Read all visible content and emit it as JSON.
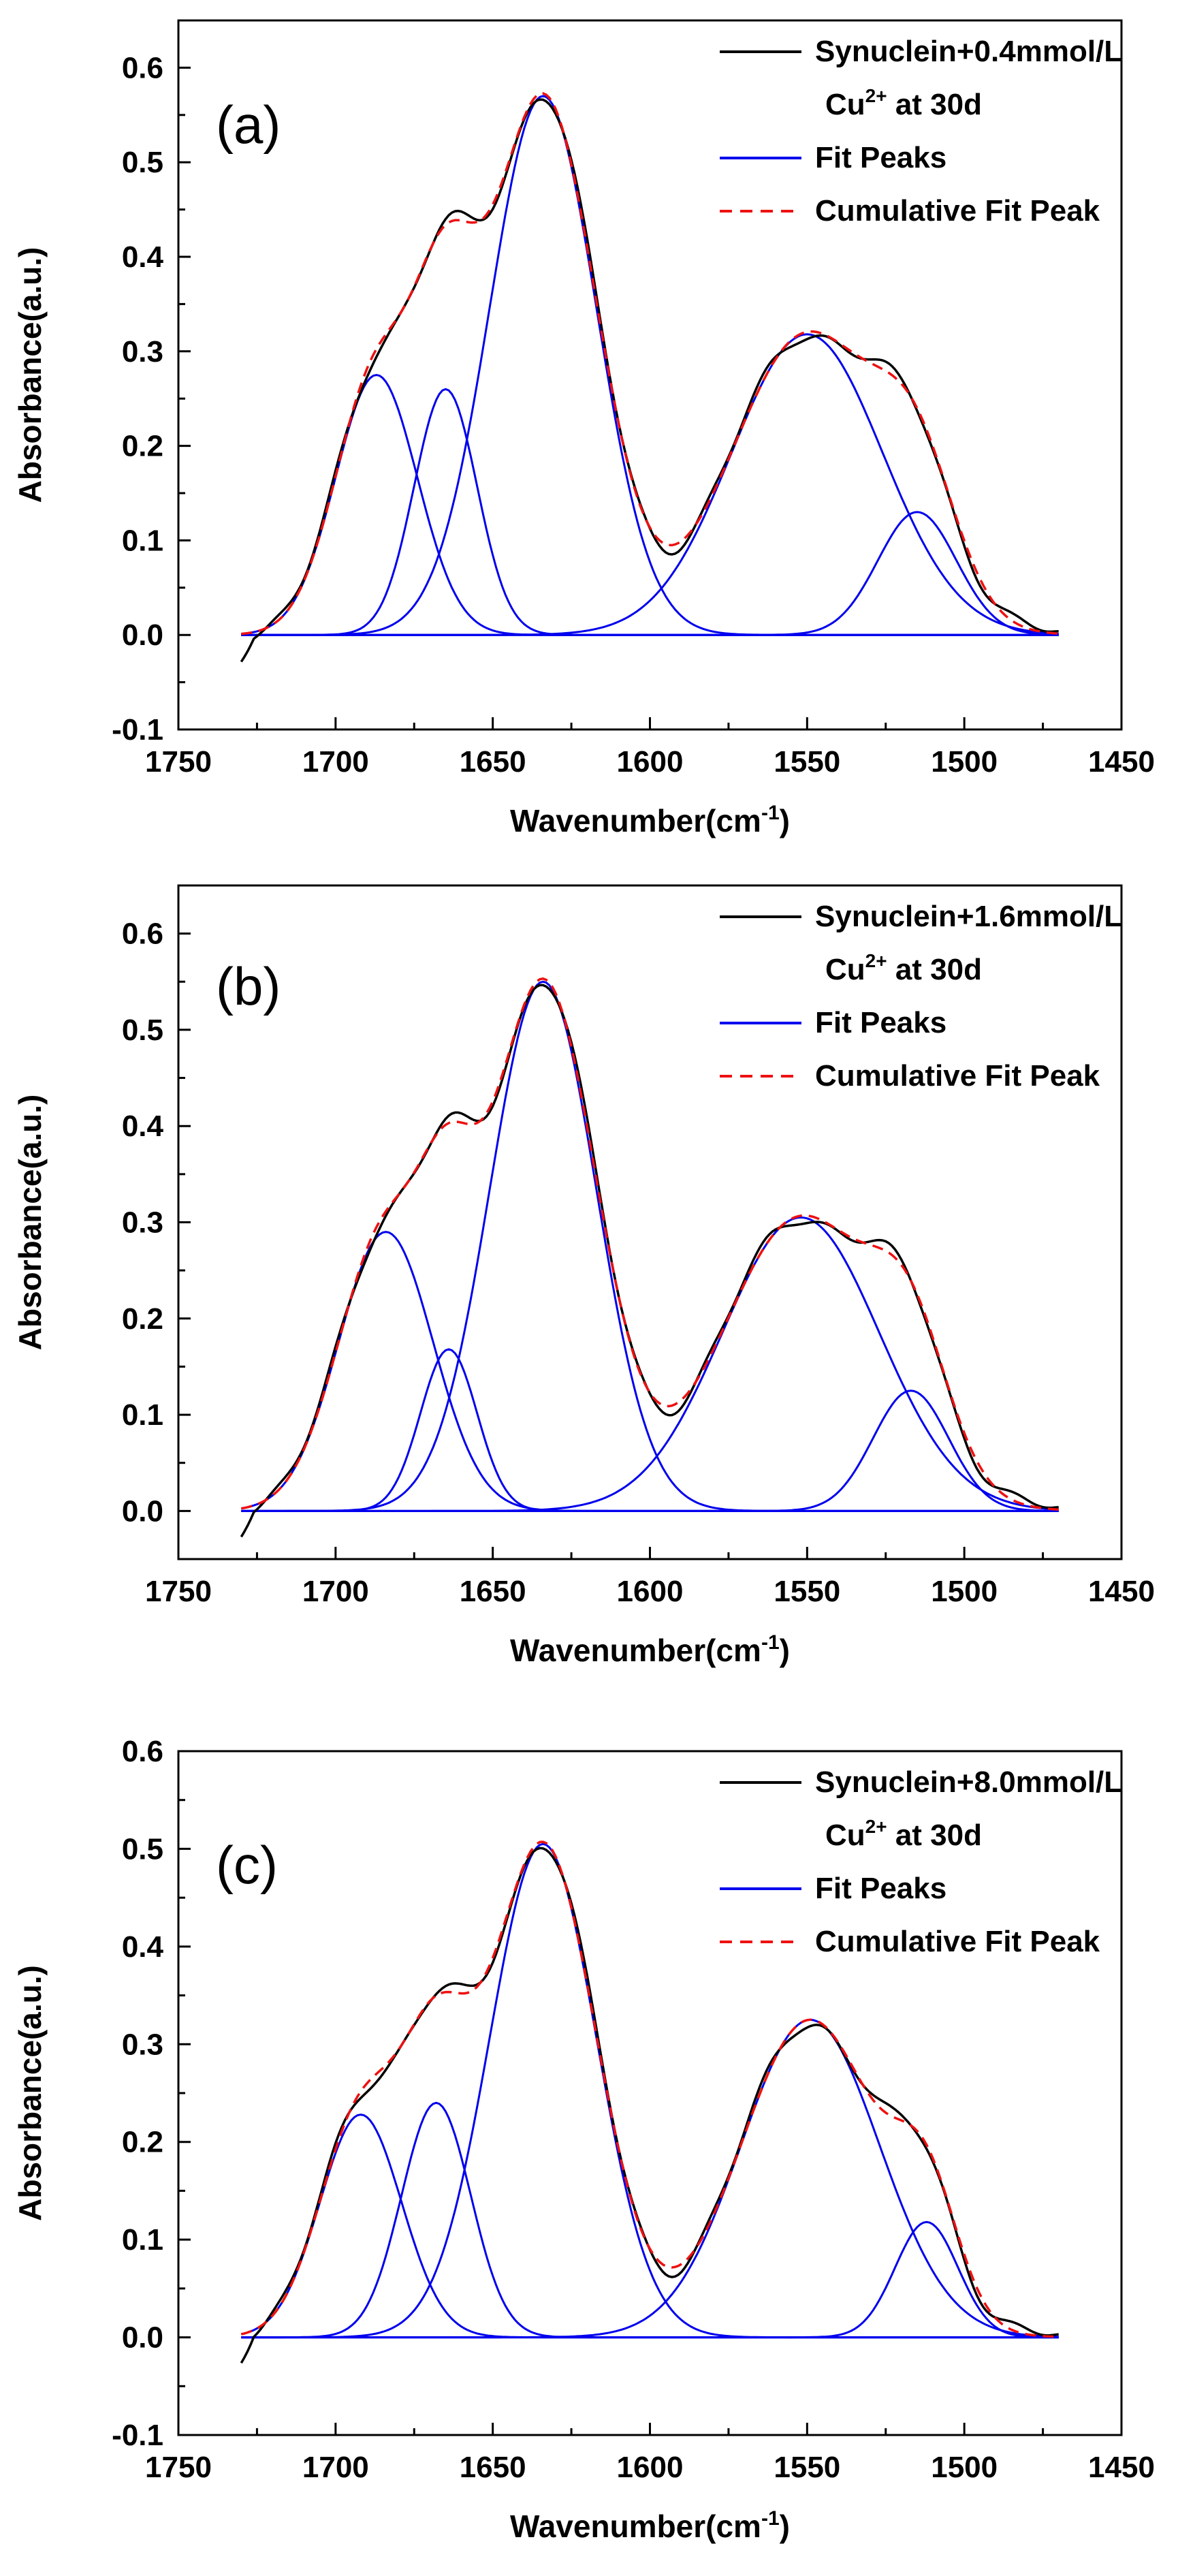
{
  "chart_data": [
    {
      "type": "line",
      "panel_label": "(a)",
      "xlabel_main": "Wavenumber(cm",
      "xlabel_sup": "-1",
      "xlabel_tail": ")",
      "ylabel": "Absorbance(a.u.)",
      "xlim": [
        1750,
        1450
      ],
      "ylim": [
        -0.1,
        0.65
      ],
      "x_ticks": [
        1750,
        1700,
        1650,
        1600,
        1550,
        1500,
        1450
      ],
      "x_tick_labels": [
        "1750",
        "1700",
        "1650",
        "1600",
        "1550",
        "1500",
        "1450"
      ],
      "y_ticks": [
        -0.1,
        0.0,
        0.1,
        0.2,
        0.3,
        0.4,
        0.5,
        0.6
      ],
      "y_tick_labels": [
        "-0.1",
        "0.0",
        "0.1",
        "0.2",
        "0.3",
        "0.4",
        "0.5",
        "0.6"
      ],
      "legend": {
        "placement": "top-right",
        "entries": [
          {
            "label": "Synuclein+0.4mmol/L",
            "color": "#000000",
            "dash": false
          },
          {
            "label_main": "Cu",
            "label_sup": "2+",
            "label_tail": " at 30d"
          },
          {
            "label": "Fit Peaks",
            "color": "#0000ee",
            "dash": false
          },
          {
            "label": "Cumulative Fit Peak",
            "color": "#ee1111",
            "dash": true
          }
        ]
      },
      "x_range": [
        1730,
        1470
      ],
      "peaks": [
        {
          "center": 1687,
          "amplitude": 0.275,
          "sigma": 13.0
        },
        {
          "center": 1665,
          "amplitude": 0.26,
          "sigma": 10.0
        },
        {
          "center": 1634,
          "amplitude": 0.57,
          "sigma": 17.0
        },
        {
          "center": 1550,
          "amplitude": 0.318,
          "sigma": 24.0
        },
        {
          "center": 1515,
          "amplitude": 0.13,
          "sigma": 12.5
        }
      ],
      "baseline": 0.0,
      "colors": {
        "spectrum": "#000000",
        "fit": "#0000ee",
        "cumulative": "#ee1111"
      }
    },
    {
      "type": "line",
      "panel_label": "(b)",
      "xlabel_main": "Wavenumber(cm",
      "xlabel_sup": "-1",
      "xlabel_tail": ")",
      "ylabel": "Absorbance(a.u.)",
      "xlim": [
        1750,
        1450
      ],
      "ylim": [
        -0.05,
        0.65
      ],
      "x_ticks": [
        1750,
        1700,
        1650,
        1600,
        1550,
        1500,
        1450
      ],
      "x_tick_labels": [
        "1750",
        "1700",
        "1650",
        "1600",
        "1550",
        "1500",
        "1450"
      ],
      "y_ticks": [
        0.0,
        0.1,
        0.2,
        0.3,
        0.4,
        0.5,
        0.6
      ],
      "y_tick_labels": [
        "0.0",
        "0.1",
        "0.2",
        "0.3",
        "0.4",
        "0.5",
        "0.6"
      ],
      "legend": {
        "placement": "top-right",
        "entries": [
          {
            "label": "Synuclein+1.6mmol/L",
            "color": "#000000",
            "dash": false
          },
          {
            "label_main": "Cu",
            "label_sup": "2+",
            "label_tail": " at 30d"
          },
          {
            "label": "Fit Peaks",
            "color": "#0000ee",
            "dash": false
          },
          {
            "label": "Cumulative Fit Peak",
            "color": "#ee1111",
            "dash": true
          }
        ]
      },
      "x_range": [
        1730,
        1470
      ],
      "peaks": [
        {
          "center": 1684,
          "amplitude": 0.29,
          "sigma": 15.0
        },
        {
          "center": 1664,
          "amplitude": 0.168,
          "sigma": 9.0
        },
        {
          "center": 1634,
          "amplitude": 0.55,
          "sigma": 17.0
        },
        {
          "center": 1552,
          "amplitude": 0.305,
          "sigma": 25.0
        },
        {
          "center": 1517,
          "amplitude": 0.125,
          "sigma": 12.0
        }
      ],
      "baseline": 0.0,
      "colors": {
        "spectrum": "#000000",
        "fit": "#0000ee",
        "cumulative": "#ee1111"
      }
    },
    {
      "type": "line",
      "panel_label": "(c)",
      "xlabel_main": "Wavenumber(cm",
      "xlabel_sup": "-1",
      "xlabel_tail": ")",
      "ylabel": "Absorbance(a.u.)",
      "xlim": [
        1750,
        1450
      ],
      "ylim": [
        -0.1,
        0.6
      ],
      "x_ticks": [
        1750,
        1700,
        1650,
        1600,
        1550,
        1500,
        1450
      ],
      "x_tick_labels": [
        "1750",
        "1700",
        "1650",
        "1600",
        "1550",
        "1500",
        "1450"
      ],
      "y_ticks": [
        -0.1,
        0.0,
        0.1,
        0.2,
        0.3,
        0.4,
        0.5,
        0.6
      ],
      "y_tick_labels": [
        "-0.1",
        "0.0",
        "0.1",
        "0.2",
        "0.3",
        "0.4",
        "0.5",
        "0.6"
      ],
      "legend": {
        "placement": "top-right",
        "entries": [
          {
            "label": "Synuclein+8.0mmol/L",
            "color": "#000000",
            "dash": false
          },
          {
            "label_main": "Cu",
            "label_sup": "2+",
            "label_tail": " at 30d"
          },
          {
            "label": "Fit Peaks",
            "color": "#0000ee",
            "dash": false
          },
          {
            "label": "Cumulative Fit Peak",
            "color": "#ee1111",
            "dash": true
          }
        ]
      },
      "x_range": [
        1730,
        1470
      ],
      "peaks": [
        {
          "center": 1692,
          "amplitude": 0.228,
          "sigma": 13.0
        },
        {
          "center": 1668,
          "amplitude": 0.24,
          "sigma": 11.0
        },
        {
          "center": 1634,
          "amplitude": 0.505,
          "sigma": 17.0
        },
        {
          "center": 1549,
          "amplitude": 0.325,
          "sigma": 22.0
        },
        {
          "center": 1512,
          "amplitude": 0.118,
          "sigma": 10.0
        }
      ],
      "baseline": 0.0,
      "colors": {
        "spectrum": "#000000",
        "fit": "#0000ee",
        "cumulative": "#ee1111"
      }
    }
  ]
}
